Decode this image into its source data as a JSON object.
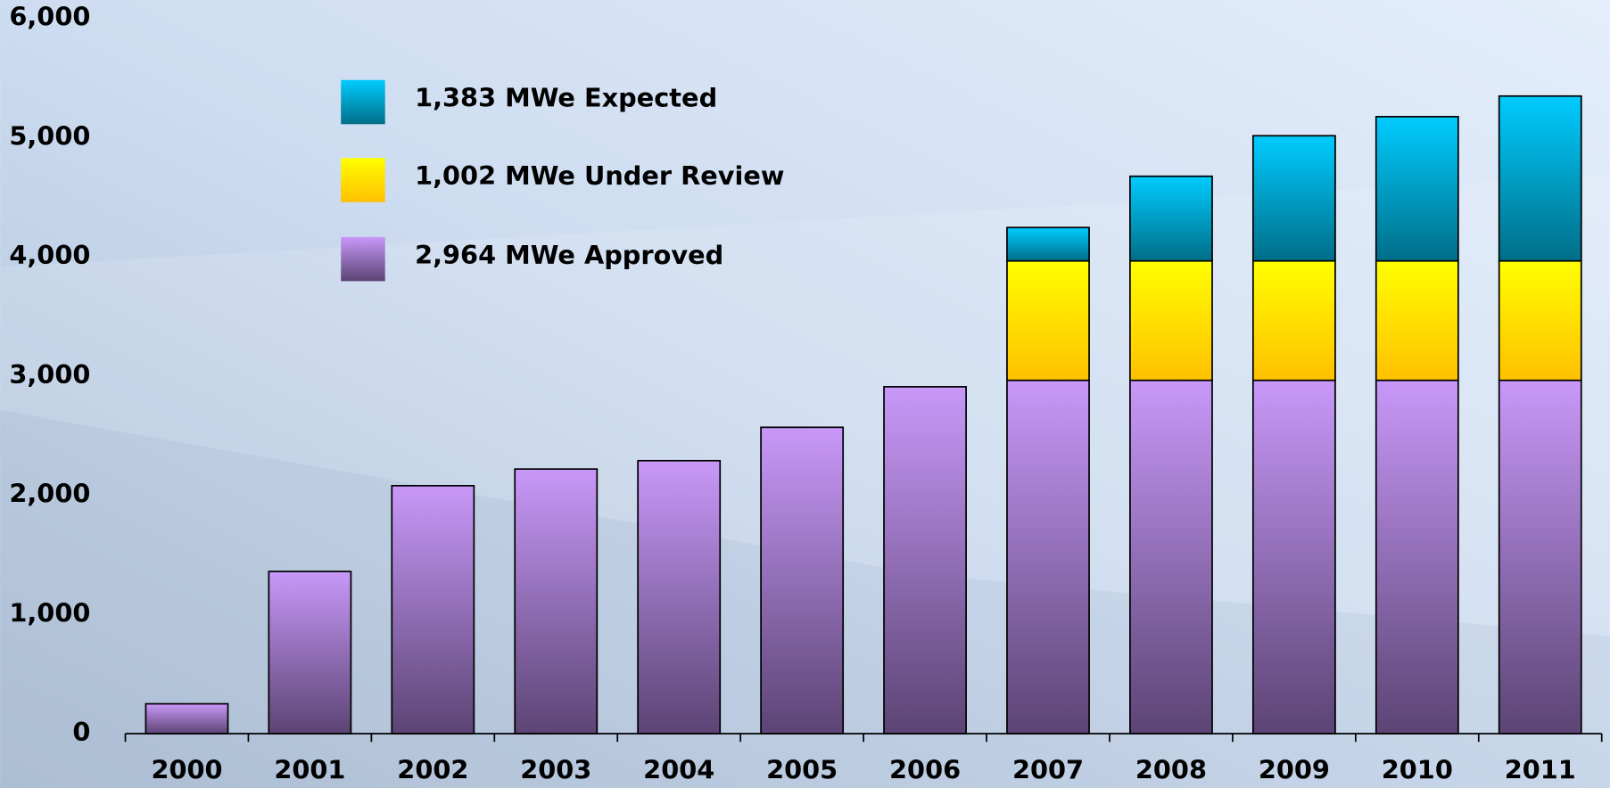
{
  "chart_data": {
    "type": "stacked_bar",
    "categories": [
      "2000",
      "2001",
      "2002",
      "2003",
      "2004",
      "2005",
      "2006",
      "2007",
      "2008",
      "2009",
      "2010",
      "2011"
    ],
    "series": [
      {
        "name": "2,964 MWe Approved",
        "color": "#c898f8",
        "color_end": "#5c4474",
        "values": [
          250,
          1360,
          2080,
          2220,
          2290,
          2570,
          2910,
          2964,
          2964,
          2964,
          2964,
          2964
        ]
      },
      {
        "name": "1,002 MWe Under Review",
        "color": "#ffff00",
        "color_end": "#ffc000",
        "values": [
          null,
          null,
          null,
          null,
          null,
          null,
          null,
          1002,
          1002,
          1002,
          1002,
          1002
        ]
      },
      {
        "name": "1,383 MWe Expected",
        "color": "#00ccff",
        "color_end": "#006e88",
        "values": [
          null,
          null,
          null,
          null,
          null,
          null,
          null,
          280,
          710,
          1050,
          1210,
          1383
        ]
      }
    ],
    "ylim": [
      0,
      6000
    ],
    "yticks": [
      0,
      {
        "value": 1000,
        "label": "1,000"
      },
      {
        "value": 2000,
        "label": "2,000"
      },
      {
        "value": 3000,
        "label": "3,000"
      },
      {
        "value": 4000,
        "label": "4,000"
      },
      {
        "value": 5000,
        "label": "5,000"
      },
      {
        "value": 6000,
        "label": "6,000"
      }
    ],
    "legend": "top-left"
  }
}
